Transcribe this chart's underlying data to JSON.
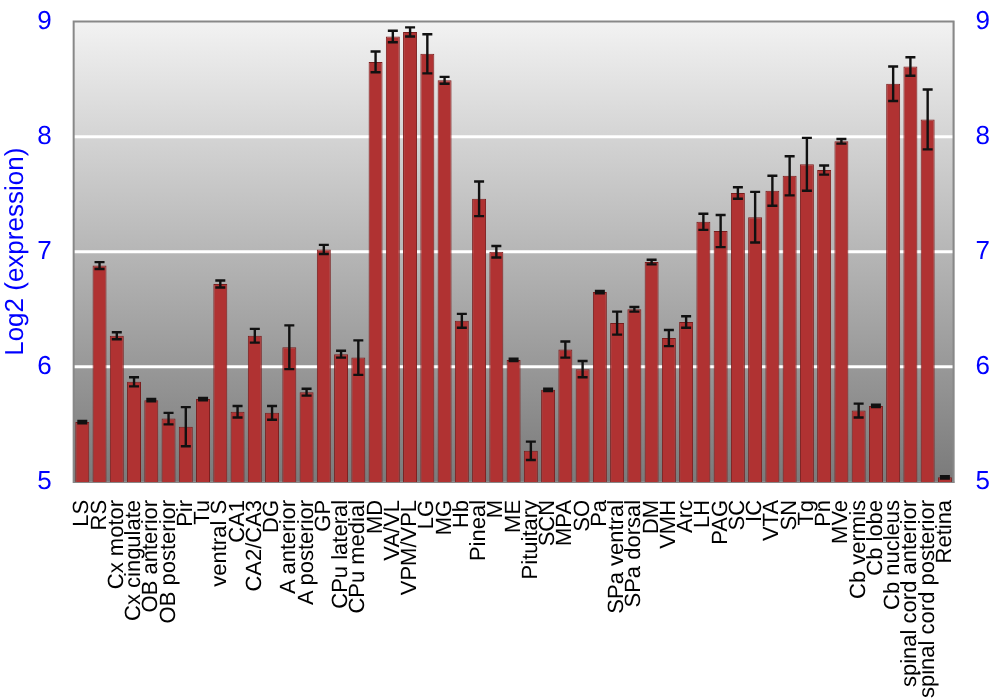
{
  "chart_data": {
    "type": "bar",
    "ylabel": "Log2 (expression)",
    "categories": [
      "LS",
      "RS",
      "Cx motor",
      "Cx cingulate",
      "OB anterior",
      "OB posterior",
      "Pir",
      "Tu",
      "ventral S",
      "CA1",
      "CA2/CA3",
      "DG",
      "A anterior",
      "A posterior",
      "GP",
      "CPu lateral",
      "CPu medial",
      "MD",
      "VA/VL",
      "VPM/VPL",
      "LG",
      "MG",
      "Hb",
      "Pineal",
      "M",
      "ME",
      "Pituitary",
      "SCN",
      "MPA",
      "SO",
      "Pa",
      "SPa ventral",
      "SPa dorsal",
      "DM",
      "VMH",
      "Arc",
      "LH",
      "PAG",
      "SC",
      "IC",
      "VTA",
      "SN",
      "Tg",
      "Pn",
      "MVe",
      "Cb vermis",
      "Cb lobe",
      "Cb nucleus",
      "spinal cord anterior",
      "spinal cord posterior",
      "Retina"
    ],
    "values": [
      5.52,
      6.88,
      6.27,
      5.87,
      5.71,
      5.55,
      5.48,
      5.72,
      6.72,
      5.61,
      6.27,
      5.6,
      6.17,
      5.78,
      7.02,
      6.11,
      6.08,
      8.65,
      8.87,
      8.91,
      8.72,
      8.49,
      6.4,
      7.46,
      7.0,
      6.06,
      5.27,
      5.8,
      6.15,
      5.98,
      6.65,
      6.38,
      6.5,
      6.91,
      6.25,
      6.39,
      7.26,
      7.18,
      7.51,
      7.3,
      7.53,
      7.66,
      7.76,
      7.71,
      7.96,
      5.62,
      5.66,
      8.46,
      8.61,
      8.15,
      5.04
    ],
    "errors": [
      0.01,
      0.03,
      0.03,
      0.04,
      0.01,
      0.05,
      0.17,
      0.01,
      0.03,
      0.05,
      0.06,
      0.06,
      0.19,
      0.03,
      0.04,
      0.03,
      0.15,
      0.09,
      0.05,
      0.04,
      0.17,
      0.03,
      0.06,
      0.15,
      0.05,
      0.01,
      0.08,
      0.01,
      0.07,
      0.07,
      0.01,
      0.1,
      0.02,
      0.02,
      0.07,
      0.05,
      0.07,
      0.14,
      0.05,
      0.22,
      0.13,
      0.17,
      0.23,
      0.04,
      0.02,
      0.06,
      0.01,
      0.15,
      0.08,
      0.26,
      0.01
    ],
    "color": "#b03232",
    "ylim": [
      5,
      9
    ],
    "yticks": [
      5,
      6,
      7,
      8,
      9
    ],
    "y2lim": [
      5,
      9
    ],
    "y2ticks": [
      5,
      6,
      7,
      8,
      9
    ],
    "grid": "y",
    "legend": false
  }
}
